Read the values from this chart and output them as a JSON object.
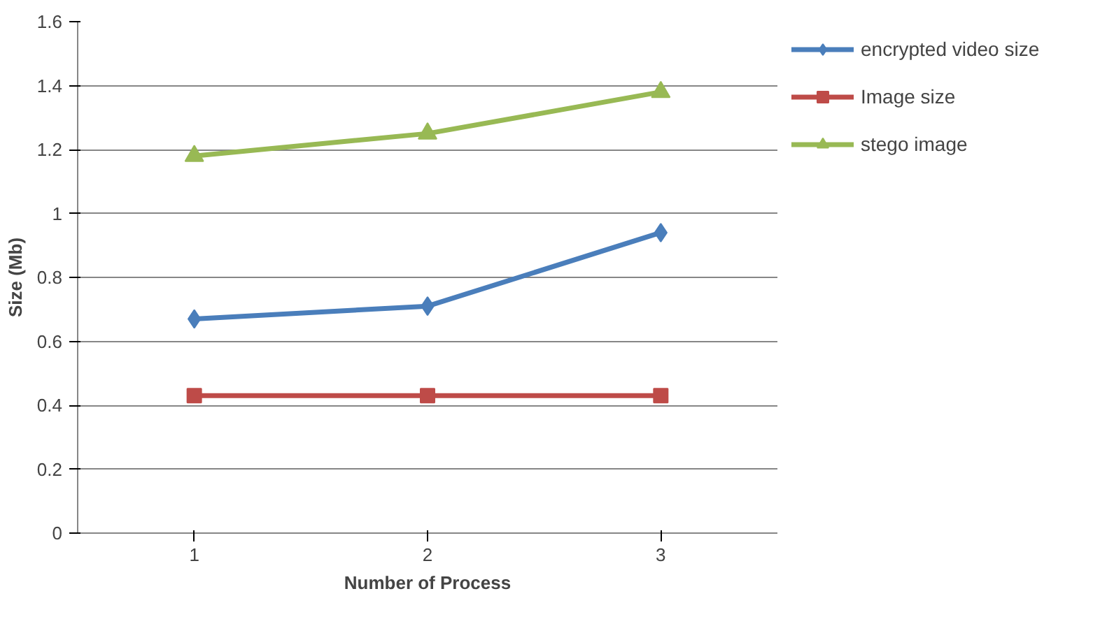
{
  "chart_data": {
    "type": "line",
    "xlabel": "Number of Process",
    "ylabel": "Size (Mb)",
    "categories": [
      "1",
      "2",
      "3"
    ],
    "series": [
      {
        "name": "encrypted video size",
        "color": "#4a7ebb",
        "marker": "diamond",
        "values": [
          0.67,
          0.71,
          0.94
        ]
      },
      {
        "name": "Image size",
        "color": "#be4b48",
        "marker": "square",
        "values": [
          0.43,
          0.43,
          0.43
        ]
      },
      {
        "name": "stego image",
        "color": "#98b954",
        "marker": "triangle",
        "values": [
          1.18,
          1.25,
          1.38
        ]
      }
    ],
    "ylim": [
      0,
      1.6
    ],
    "yticks": [
      0,
      0.2,
      0.4,
      0.6,
      0.8,
      1,
      1.2,
      1.4,
      1.6
    ],
    "grid": "y",
    "legend": "top right",
    "line_style": "solid"
  }
}
